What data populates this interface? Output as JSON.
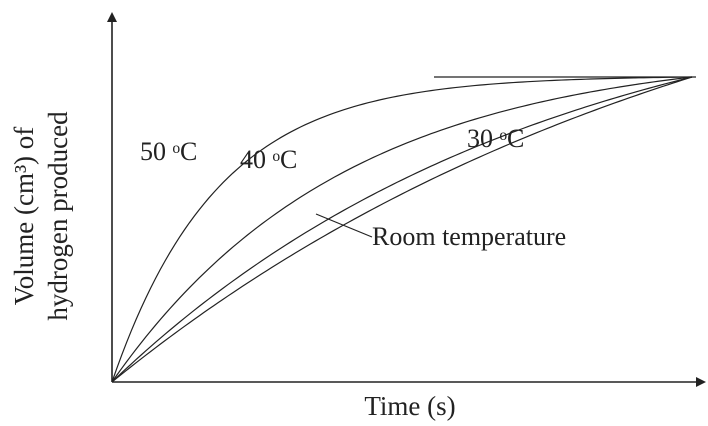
{
  "chart_data": {
    "type": "line",
    "xlabel": "Time (s)",
    "ylabel_line1": "Volume (cm³) of",
    "ylabel_line2": "hydrogen produced",
    "series": [
      {
        "name": "50 °C",
        "label": "50 ᵒC",
        "k": 5.5
      },
      {
        "name": "40 °C",
        "label": "40 ᵒC",
        "k": 2.5
      },
      {
        "name": "30 °C",
        "label": "30 ᵒC",
        "k": 1.35
      },
      {
        "name": "Room temperature",
        "label": "Room temperature",
        "k": 0.95
      }
    ],
    "final_volume": 1,
    "xlim": [
      0,
      1
    ],
    "ylim": [
      0,
      1.4
    ]
  }
}
